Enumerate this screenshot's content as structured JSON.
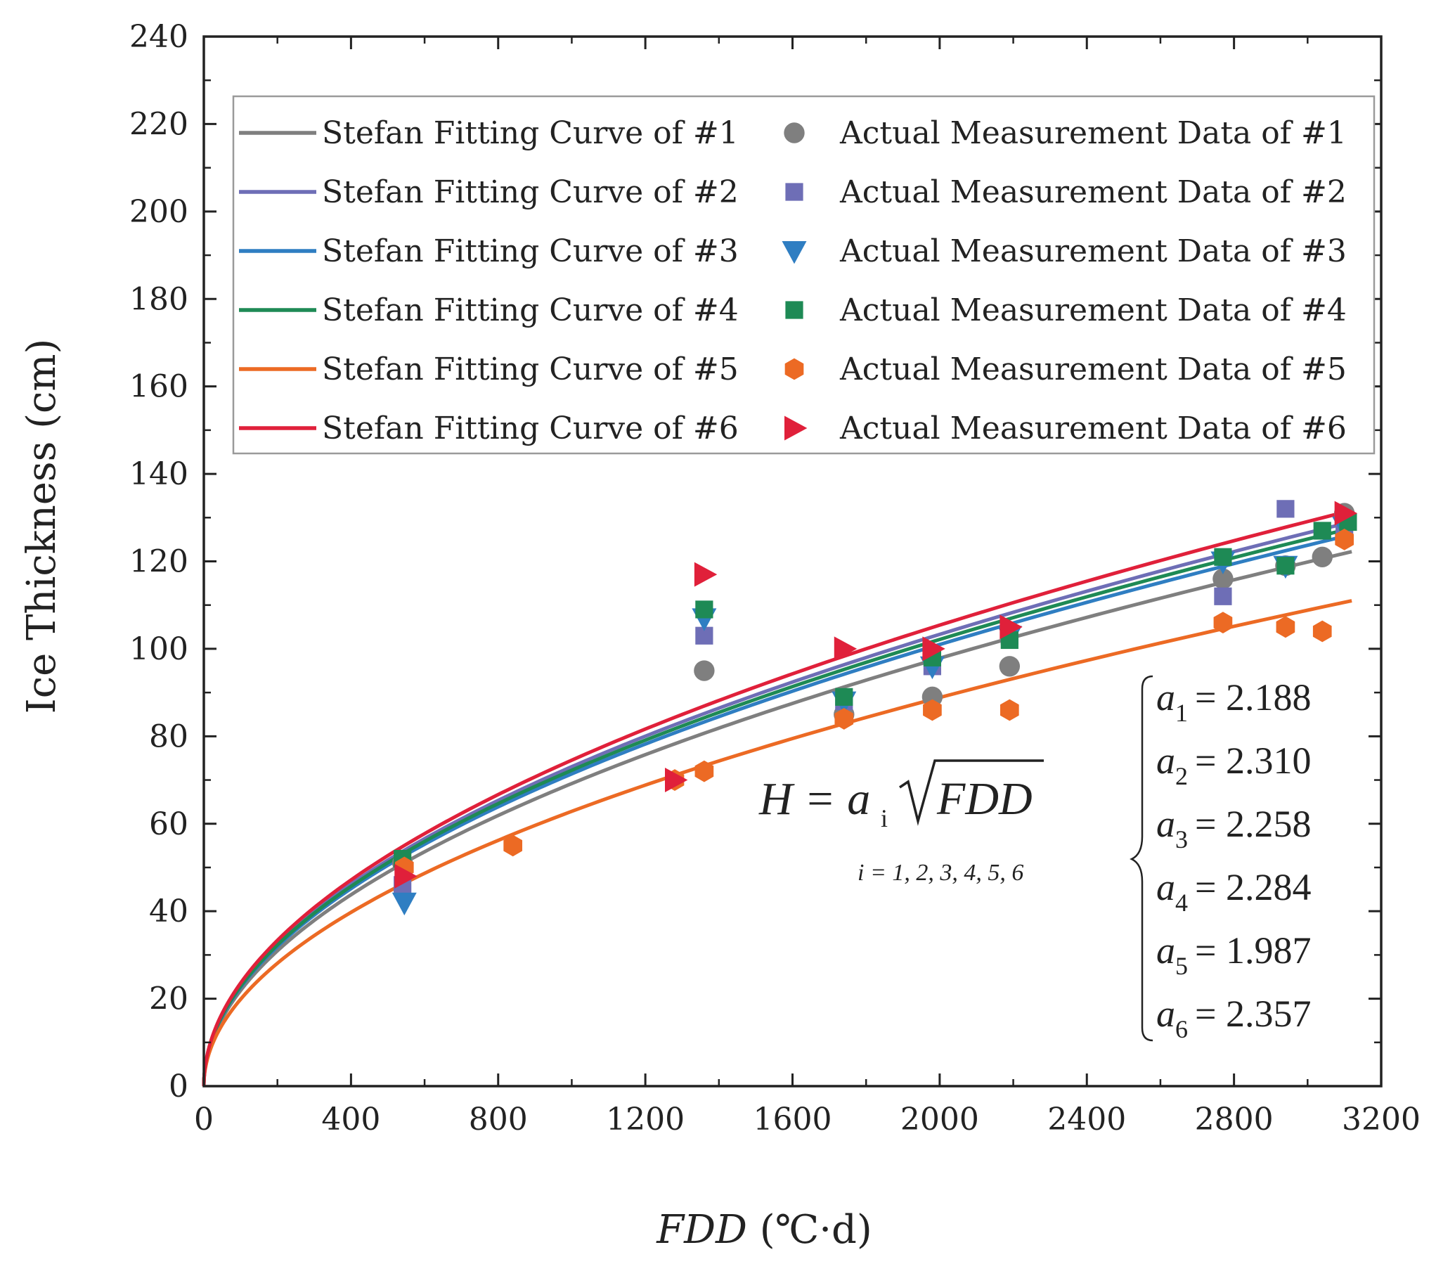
{
  "chart_data": {
    "type": "scatter",
    "title": "",
    "xlabel": "FDD",
    "xlabel_unit": "(℃·d)",
    "ylabel": "Ice Thickness (cm)",
    "xlim": [
      0,
      3200
    ],
    "ylim": [
      0,
      240
    ],
    "x_ticks": [
      "0",
      "400",
      "800",
      "1200",
      "1600",
      "2000",
      "2400",
      "2800",
      "3200"
    ],
    "y_ticks": [
      "0",
      "20",
      "40",
      "60",
      "80",
      "100",
      "120",
      "140",
      "160",
      "180",
      "200",
      "220",
      "240"
    ],
    "grid": false,
    "legend_position": "top",
    "fit_x_max": 3120,
    "series": [
      {
        "name": "#1",
        "color": "#7f7f7f",
        "marker": "circle",
        "a": 2.188,
        "fit_label": "Stefan Fitting Curve of #1",
        "data_label": "Actual Measurement Data of #1",
        "x": [
          540,
          1360,
          1740,
          1980,
          2190,
          2770,
          2940,
          3040,
          3100
        ],
        "y": [
          51,
          95,
          85,
          89,
          96,
          116,
          119,
          121,
          131
        ]
      },
      {
        "name": "#2",
        "color": "#6e6eb6",
        "marker": "square",
        "a": 2.31,
        "fit_label": "Stefan Fitting Curve of #2",
        "data_label": "Actual Measurement Data of #2",
        "x": [
          540,
          1360,
          1740,
          1980,
          2190,
          2770,
          2940,
          3100
        ],
        "y": [
          46,
          103,
          88,
          96,
          103,
          112,
          132,
          127
        ]
      },
      {
        "name": "#3",
        "color": "#2f7ec2",
        "marker": "triangle-down",
        "a": 2.258,
        "fit_label": "Stefan Fitting Curve of #3",
        "data_label": "Actual Measurement Data of #3",
        "x": [
          545,
          1360,
          1740,
          1980,
          2190,
          2770,
          2940,
          3100
        ],
        "y": [
          42,
          107,
          88,
          96,
          103,
          120,
          119,
          128
        ]
      },
      {
        "name": "#4",
        "color": "#1e8a55",
        "marker": "square",
        "a": 2.284,
        "fit_label": "Stefan Fitting Curve of #4",
        "data_label": "Actual Measurement Data of #4",
        "x": [
          540,
          1360,
          1740,
          1980,
          2190,
          2770,
          2940,
          3040,
          3110
        ],
        "y": [
          52,
          109,
          89,
          98,
          102,
          121,
          119,
          127,
          129
        ]
      },
      {
        "name": "#5",
        "color": "#ec6a24",
        "marker": "hexagon",
        "a": 1.987,
        "fit_label": "Stefan Fitting Curve of #5",
        "data_label": "Actual Measurement Data of #5",
        "x": [
          545,
          840,
          1280,
          1360,
          1740,
          1980,
          2190,
          2770,
          2940,
          3040,
          3100
        ],
        "y": [
          50,
          55,
          70,
          72,
          84,
          86,
          86,
          106,
          105,
          104,
          125
        ]
      },
      {
        "name": "#6",
        "color": "#e0203a",
        "marker": "triangle-right",
        "a": 2.357,
        "fit_label": "Stefan Fitting Curve of #6",
        "data_label": "Actual Measurement Data of #6",
        "x": [
          545,
          1280,
          1360,
          1740,
          1980,
          2190,
          3100
        ],
        "y": [
          48,
          70,
          117,
          100,
          100,
          105,
          131
        ]
      }
    ],
    "annotations": {
      "formula_left": "H = a",
      "formula_sub": "i",
      "formula_root": "FDD",
      "index_note": "i = 1, 2, 3, 4, 5, 6",
      "coefficients": [
        {
          "sub": "1",
          "value": "= 2.188"
        },
        {
          "sub": "2",
          "value": "= 2.310"
        },
        {
          "sub": "3",
          "value": "= 2.258"
        },
        {
          "sub": "4",
          "value": "= 2.284"
        },
        {
          "sub": "5",
          "value": "= 1.987"
        },
        {
          "sub": "6",
          "value": "= 2.357"
        }
      ]
    }
  }
}
